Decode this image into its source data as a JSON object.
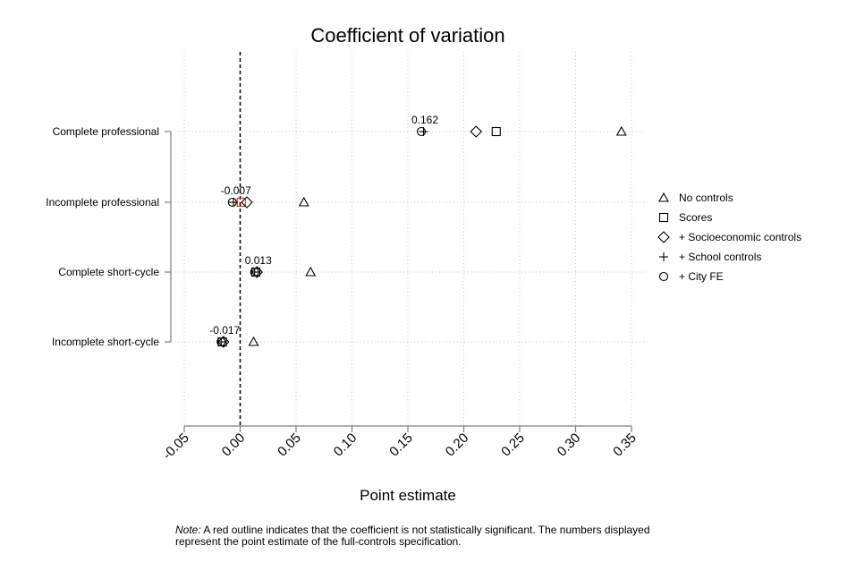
{
  "chart_data": {
    "type": "scatter",
    "title": "Coefficient of variation",
    "xlabel": "Point estimate",
    "ylabel": "",
    "xlim": [
      -0.05,
      0.35
    ],
    "xticks": [
      "-0.05",
      "0.00",
      "0.05",
      "0.10",
      "0.15",
      "0.20",
      "0.25",
      "0.30",
      "0.35"
    ],
    "categories": [
      "Complete professional",
      "Incomplete professional",
      "Complete short-cycle",
      "Incomplete short-cycle"
    ],
    "reference_line": 0,
    "grid": true,
    "legend_position": "right",
    "series": [
      {
        "name": "No controls",
        "marker": "triangle",
        "values": [
          0.341,
          0.057,
          0.063,
          0.012
        ]
      },
      {
        "name": "Scores",
        "marker": "square",
        "values": [
          0.229,
          0.001,
          0.014,
          -0.016
        ]
      },
      {
        "name": "+ Socioeconomic controls",
        "marker": "diamond",
        "values": [
          0.211,
          0.006,
          0.015,
          -0.015
        ]
      },
      {
        "name": "+ School controls",
        "marker": "plus",
        "values": [
          0.164,
          -0.006,
          0.013,
          -0.017
        ]
      },
      {
        "name": "+ City FE",
        "marker": "circle",
        "values": [
          0.162,
          -0.007,
          0.013,
          -0.017
        ]
      }
    ],
    "not_significant": [
      {
        "series": "Scores",
        "category": "Incomplete professional"
      }
    ],
    "outline_color": "#000000",
    "not_significant_color": "#d62728",
    "point_labels": [
      {
        "category": "Complete professional",
        "value": 0.162,
        "text": "0.162"
      },
      {
        "category": "Incomplete professional",
        "value": -0.007,
        "text": "-0.007"
      },
      {
        "category": "Complete short-cycle",
        "value": 0.013,
        "text": "0.013"
      },
      {
        "category": "Incomplete short-cycle",
        "value": -0.017,
        "text": "-0.017"
      }
    ]
  },
  "note": {
    "prefix": "Note:",
    "text": " A red outline indicates that the coefficient is not statistically significant. The numbers displayed represent the point estimate of the full-controls specification."
  }
}
